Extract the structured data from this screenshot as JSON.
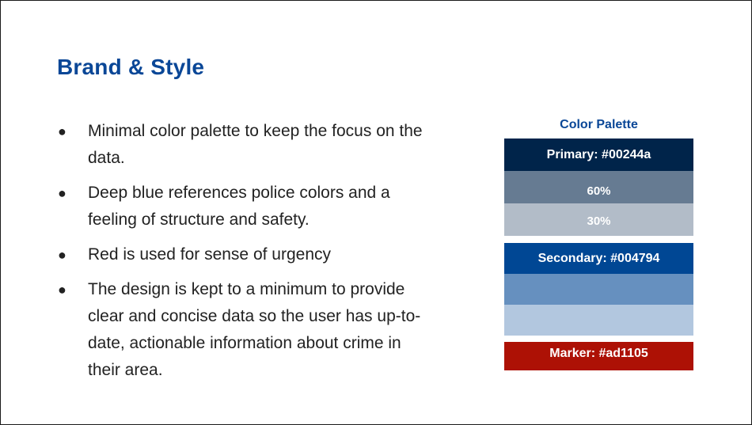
{
  "slide": {
    "title": "Brand & Style",
    "bullet_symbol": "●",
    "bullets": [
      "Minimal color palette to keep the focus on the data.",
      "Deep blue references police colors and a feeling of structure and safety.",
      "Red is used for sense of urgency",
      "The design is kept to a minimum to provide clear and concise data so the user has up-to-date, actionable information about crime in their area."
    ]
  },
  "palette": {
    "title": "Color Palette",
    "primary": {
      "label": "Primary: #00244a",
      "color": "#00244a"
    },
    "primary_60": {
      "label": "60%",
      "color": "#667b92"
    },
    "primary_30": {
      "label": "30%",
      "color": "#b2bcc8"
    },
    "secondary": {
      "label": "Secondary: #004794",
      "color": "#004794"
    },
    "secondary_60": {
      "color": "#6690bf"
    },
    "secondary_30": {
      "color": "#b2c7df"
    },
    "marker": {
      "label": "Marker: #ad1105",
      "color": "#ad1105"
    }
  },
  "colors": {
    "title": "#0a4797",
    "body_text": "#222222"
  }
}
